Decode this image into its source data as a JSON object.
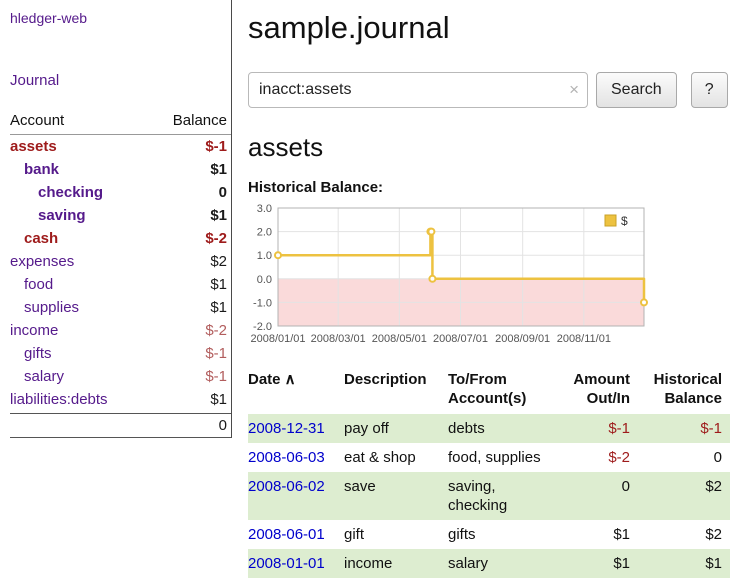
{
  "colors": {
    "purple": "#551a8b",
    "blue": "#0000cc",
    "negative": "#9e1b1b",
    "negative-soft": "#b25d5d",
    "row-shade": "#ddedd0"
  },
  "sidebar": {
    "app_title": "hledger-web",
    "journal_link": "Journal",
    "accounts": {
      "header_account": "Account",
      "header_balance": "Balance",
      "rows": [
        {
          "name": "assets",
          "balance": "$-1",
          "indent": 0,
          "bold": true,
          "name_color": "negative",
          "balance_color": "negative"
        },
        {
          "name": "bank",
          "balance": "$1",
          "indent": 1,
          "bold": true,
          "name_color": "purple",
          "balance_color": "black"
        },
        {
          "name": "checking",
          "balance": "0",
          "indent": 2,
          "bold": true,
          "name_color": "purple",
          "balance_color": "black"
        },
        {
          "name": "saving",
          "balance": "$1",
          "indent": 2,
          "bold": true,
          "name_color": "purple",
          "balance_color": "black"
        },
        {
          "name": "cash",
          "balance": "$-2",
          "indent": 1,
          "bold": true,
          "name_color": "negative",
          "balance_color": "negative"
        },
        {
          "name": "expenses",
          "balance": "$2",
          "indent": 0,
          "bold": false,
          "name_color": "purple",
          "balance_color": "black"
        },
        {
          "name": "food",
          "balance": "$1",
          "indent": 1,
          "bold": false,
          "name_color": "purple",
          "balance_color": "black"
        },
        {
          "name": "supplies",
          "balance": "$1",
          "indent": 1,
          "bold": false,
          "name_color": "purple",
          "balance_color": "black"
        },
        {
          "name": "income",
          "balance": "$-2",
          "indent": 0,
          "bold": false,
          "name_color": "purple",
          "balance_color": "negative-soft"
        },
        {
          "name": "gifts",
          "balance": "$-1",
          "indent": 1,
          "bold": false,
          "name_color": "purple",
          "balance_color": "negative-soft"
        },
        {
          "name": "salary",
          "balance": "$-1",
          "indent": 1,
          "bold": false,
          "name_color": "purple",
          "balance_color": "negative-soft"
        },
        {
          "name": "liabilities:debts",
          "balance": "$1",
          "indent": 0,
          "bold": false,
          "name_color": "purple",
          "balance_color": "black"
        }
      ],
      "total": "0"
    }
  },
  "main": {
    "title": "sample.journal",
    "search": {
      "value": "inacct:assets",
      "clear_icon": "×",
      "button_label": "Search",
      "help_label": "?"
    },
    "section_title": "assets",
    "chart_label": "Historical Balance:"
  },
  "chart_data": {
    "type": "line",
    "step": true,
    "title": "Historical Balance",
    "x_range": [
      "2008-01-01",
      "2008-12-31"
    ],
    "ylim": [
      -2.0,
      3.0
    ],
    "yticks": [
      3.0,
      2.0,
      1.0,
      0.0,
      -1.0,
      -2.0
    ],
    "xtick_labels": [
      "2008/01/01",
      "2008/03/01",
      "2008/05/01",
      "2008/07/01",
      "2008/09/01",
      "2008/11/01"
    ],
    "series": [
      {
        "name": "$",
        "color": "#edc240",
        "points": [
          {
            "date": "2008-01-01",
            "value": 1
          },
          {
            "date": "2008-06-01",
            "value": 2
          },
          {
            "date": "2008-06-02",
            "value": 2
          },
          {
            "date": "2008-06-03",
            "value": 0
          },
          {
            "date": "2008-12-31",
            "value": -1
          }
        ]
      }
    ],
    "legend_position": "top-right",
    "negative_fill": "#fadada",
    "grid_color": "#e3e3e3",
    "border_color": "#b3b3b3"
  },
  "register": {
    "headers": [
      {
        "key": "date",
        "label": "Date",
        "sort_icon": "∧",
        "align": "left",
        "sortable": true
      },
      {
        "key": "description",
        "label": "Description",
        "align": "left",
        "sortable": false
      },
      {
        "key": "accounts",
        "label": "To/From Account(s)",
        "align": "left",
        "sortable": false
      },
      {
        "key": "amount",
        "label": "Amount Out/In",
        "align": "right",
        "sortable": false
      },
      {
        "key": "balance",
        "label": "Historical Balance",
        "align": "right",
        "sortable": false
      }
    ],
    "rows": [
      {
        "date": "2008-12-31",
        "description": "pay off",
        "accounts": "debts",
        "amount": "$-1",
        "amount_negative": true,
        "balance": "$-1",
        "balance_negative": true,
        "shaded": true
      },
      {
        "date": "2008-06-03",
        "description": "eat & shop",
        "accounts": "food, supplies",
        "amount": "$-2",
        "amount_negative": true,
        "balance": "0",
        "balance_negative": false,
        "shaded": false
      },
      {
        "date": "2008-06-02",
        "description": "save",
        "accounts": "saving, checking",
        "amount": "0",
        "amount_negative": false,
        "balance": "$2",
        "balance_negative": false,
        "shaded": true
      },
      {
        "date": "2008-06-01",
        "description": "gift",
        "accounts": "gifts",
        "amount": "$1",
        "amount_negative": false,
        "balance": "$2",
        "balance_negative": false,
        "shaded": false
      },
      {
        "date": "2008-01-01",
        "description": "income",
        "accounts": "salary",
        "amount": "$1",
        "amount_negative": false,
        "balance": "$1",
        "balance_negative": false,
        "shaded": true
      }
    ]
  }
}
